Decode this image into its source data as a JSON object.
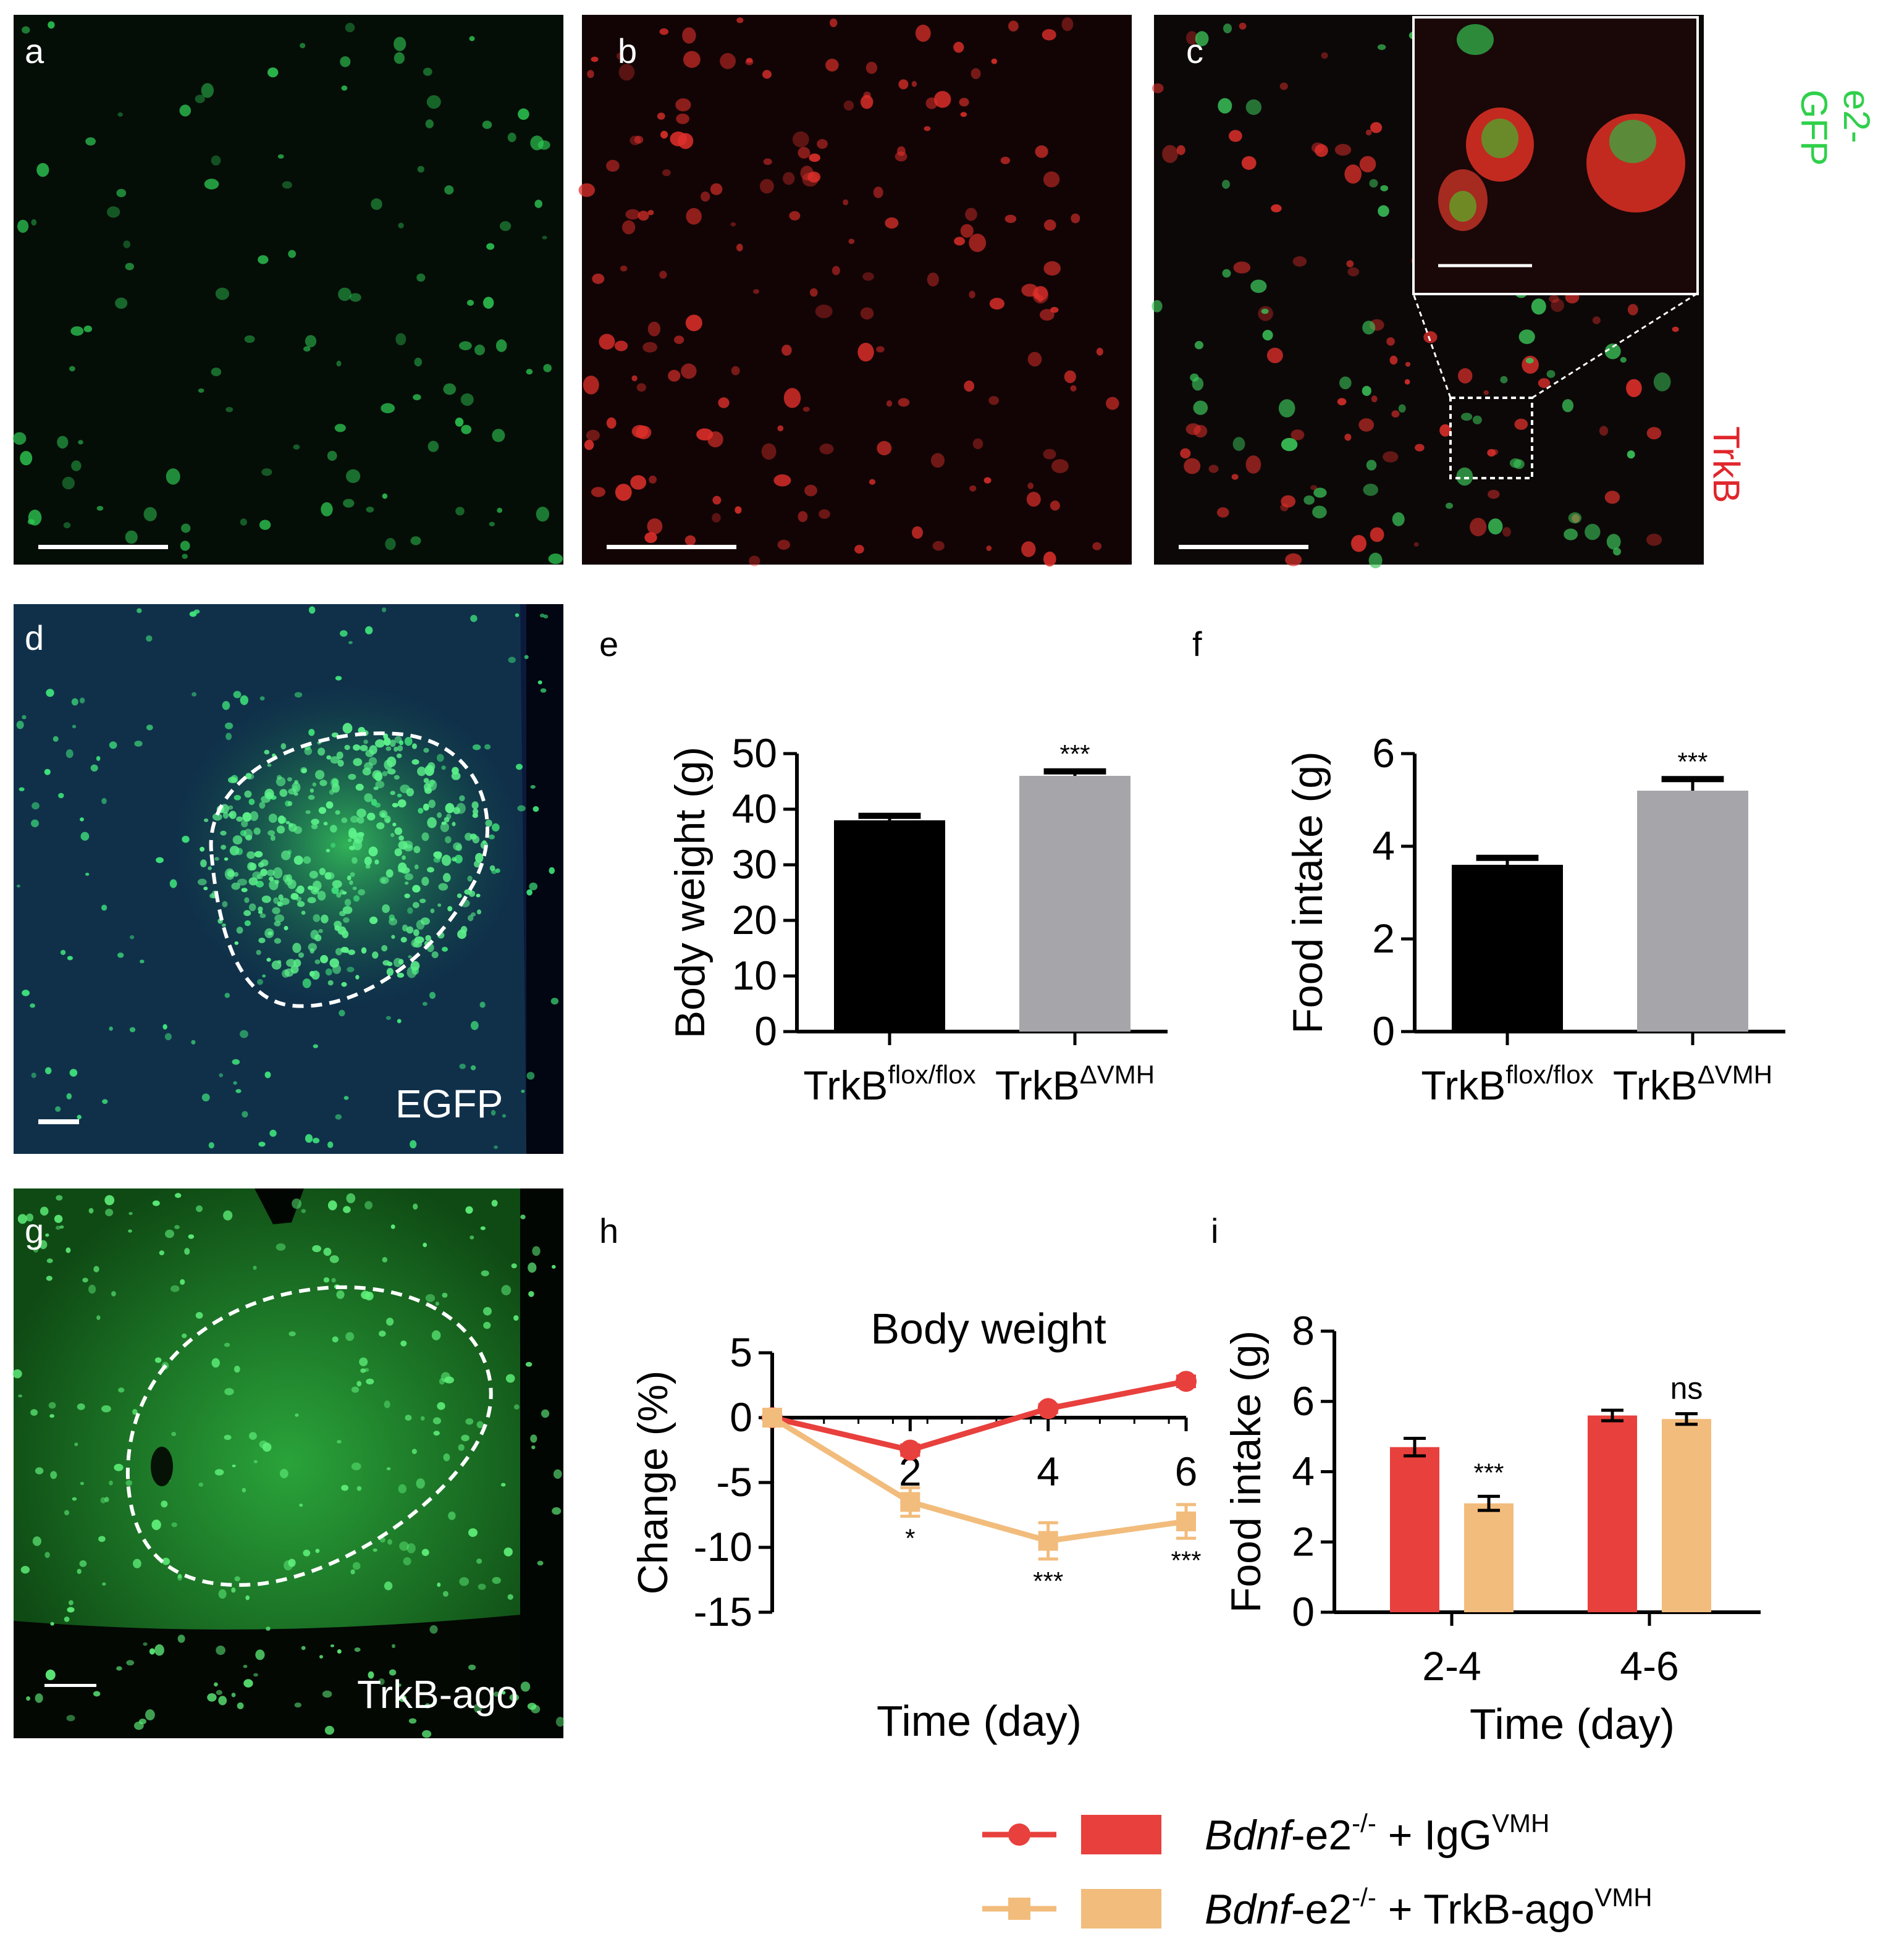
{
  "panels": {
    "a": "a",
    "b": "b",
    "c": "c",
    "d": "d",
    "e": "e",
    "f": "f",
    "g": "g",
    "h": "h",
    "i": "i"
  },
  "micrographs": {
    "c_channels": {
      "green": "e2-GFP",
      "red": "TrkB"
    },
    "d_label": "EGFP",
    "g_label": "TrkB-ago",
    "colors": {
      "green": "#2ee05a",
      "red": "#e0262b",
      "blue": "#1a2a9a"
    }
  },
  "chart_data": [
    {
      "id": "e",
      "type": "bar",
      "categories": [
        "TrkB",
        "TrkB"
      ],
      "category_superscripts": [
        "flox/flox",
        "ΔVMH"
      ],
      "values": [
        38,
        46
      ],
      "errors": [
        0.8,
        0.8
      ],
      "colors": [
        "#000000",
        "#a6a6aa"
      ],
      "ylabel": "Body weight (g)",
      "ylim": [
        0,
        50
      ],
      "yticks": [
        "0",
        "10",
        "20",
        "30",
        "40",
        "50"
      ],
      "significance": [
        "",
        "***"
      ]
    },
    {
      "id": "f",
      "type": "bar",
      "categories": [
        "TrkB",
        "TrkB"
      ],
      "category_superscripts": [
        "flox/flox",
        "ΔVMH"
      ],
      "values": [
        3.6,
        5.2
      ],
      "errors": [
        0.15,
        0.25
      ],
      "colors": [
        "#000000",
        "#a6a6aa"
      ],
      "ylabel": "Food intake (g)",
      "ylim": [
        0,
        6
      ],
      "yticks": [
        "0",
        "2",
        "4",
        "6"
      ],
      "significance": [
        "",
        "***"
      ]
    },
    {
      "id": "h",
      "type": "line",
      "title": "Body weight",
      "x": [
        0,
        2,
        4,
        6
      ],
      "xticks": [
        "2",
        "4",
        "6"
      ],
      "xlabel": "Time (day)",
      "ylabel": "Change (%)",
      "ylim": [
        -15,
        5
      ],
      "yticks": [
        "5",
        "0",
        "-5",
        "-10",
        "-15"
      ],
      "series": [
        {
          "name": "Bdnf-e2-/- + IgGVMH",
          "values": [
            0,
            -2.5,
            0.7,
            2.8
          ],
          "errors": [
            0,
            0.4,
            0.3,
            0.4
          ],
          "color": "#e8403d"
        },
        {
          "name": "Bdnf-e2-/- + TrkB-agoVMH",
          "values": [
            0,
            -6.5,
            -9.5,
            -8.0
          ],
          "errors": [
            0,
            1.1,
            1.4,
            1.3
          ],
          "color": "#f2bc7c"
        }
      ],
      "significance": [
        "",
        "*",
        "***",
        "***"
      ]
    },
    {
      "id": "i",
      "type": "bar",
      "categories": [
        "2-4",
        "4-6"
      ],
      "xlabel": "Time (day)",
      "ylabel": "Food intake (g)",
      "ylim": [
        0,
        8
      ],
      "yticks": [
        "0",
        "2",
        "4",
        "6",
        "8"
      ],
      "series": [
        {
          "name": "Bdnf-e2-/- + IgGVMH",
          "values": [
            4.7,
            5.6
          ],
          "errors": [
            0.25,
            0.15
          ],
          "color": "#e8403d"
        },
        {
          "name": "Bdnf-e2-/- + TrkB-agoVMH",
          "values": [
            3.1,
            5.5
          ],
          "errors": [
            0.2,
            0.15
          ],
          "color": "#f2bc7c"
        }
      ],
      "significance": [
        "***",
        "ns"
      ]
    }
  ],
  "legend": [
    {
      "italic": "Bdnf",
      "text": "-e2",
      "sup1": "-/-",
      "text2": " + IgG",
      "sup2": "VMH",
      "color": "#e8403d",
      "marker": "circle"
    },
    {
      "italic": "Bdnf",
      "text": "-e2",
      "sup1": "-/-",
      "text2": " + TrkB-ago",
      "sup2": "VMH",
      "color": "#f2bc7c",
      "marker": "square"
    }
  ]
}
